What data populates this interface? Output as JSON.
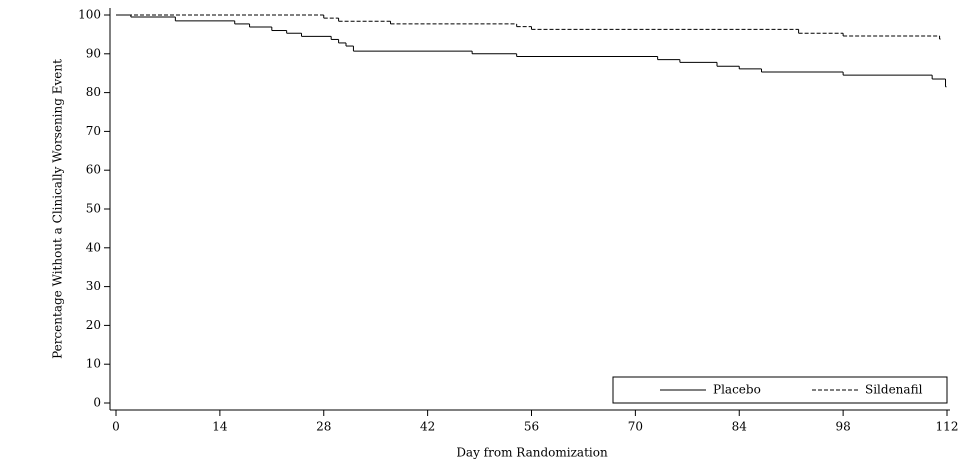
{
  "chart_data": {
    "type": "step",
    "x_label": "Day from Randomization",
    "y_label": "Percentage Without a Clinically Worsening Event",
    "xlim": [
      0,
      112
    ],
    "xticks": [
      0,
      14,
      28,
      42,
      56,
      70,
      84,
      98,
      112
    ],
    "ylim": [
      0,
      100
    ],
    "yticks": [
      0,
      10,
      20,
      30,
      40,
      50,
      60,
      70,
      80,
      90,
      100
    ],
    "legend": "bottom-right",
    "series": [
      {
        "name": "Placebo",
        "color": "#000000",
        "dash": false,
        "x": [
          0,
          2,
          8,
          16,
          18,
          21,
          23,
          25,
          29,
          30,
          31,
          32,
          48,
          54,
          73,
          76,
          81,
          84,
          87,
          98,
          110,
          111.8
        ],
        "values": [
          100,
          99.5,
          98.5,
          97.7,
          96.9,
          96,
          95.3,
          94.5,
          93.7,
          92.8,
          92,
          90.7,
          90,
          89.3,
          88.5,
          87.8,
          86.8,
          86.1,
          85.3,
          84.5,
          83.5,
          81.5
        ]
      },
      {
        "name": "Sildenafil",
        "color": "#000000",
        "dash": true,
        "x": [
          0,
          28,
          30,
          37,
          54,
          56,
          92,
          98,
          111
        ],
        "values": [
          100,
          99.2,
          98.4,
          97.7,
          97,
          96.3,
          95.3,
          94.6,
          93.8
        ]
      }
    ]
  }
}
